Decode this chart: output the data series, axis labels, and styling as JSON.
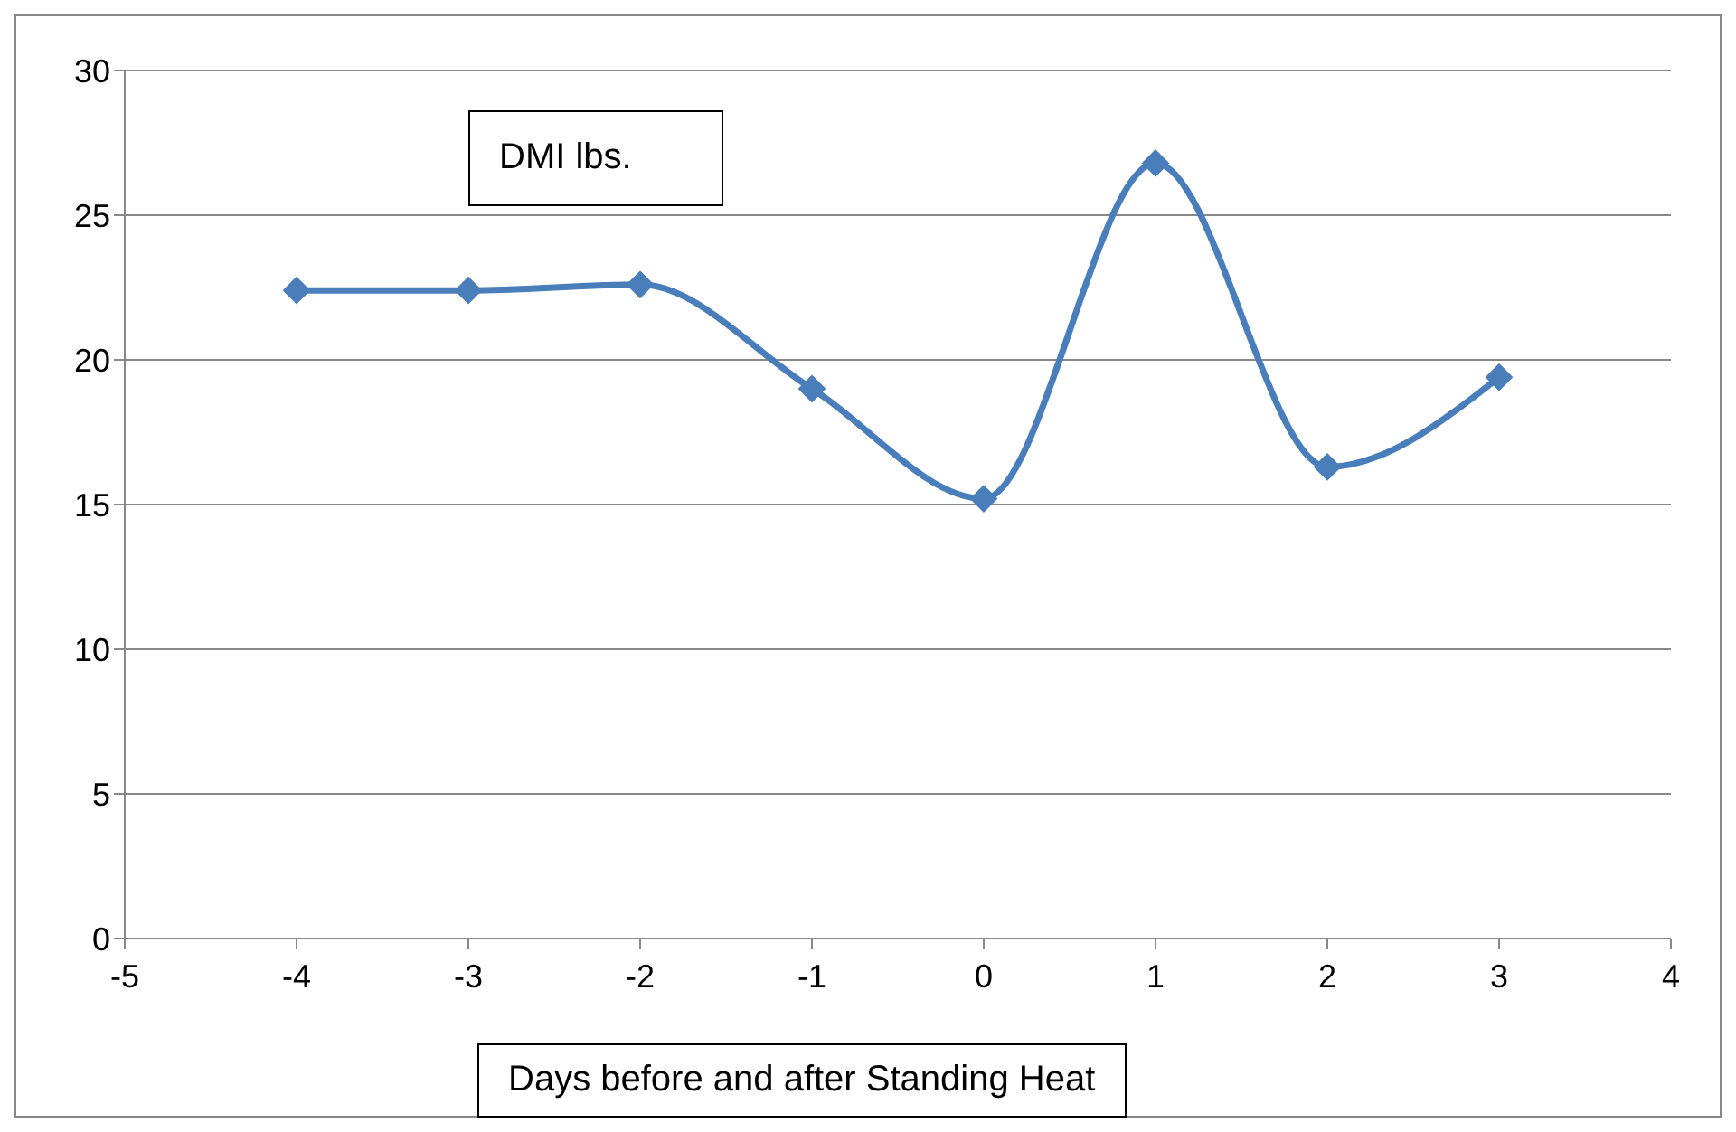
{
  "chart_data": {
    "type": "line",
    "title": "DMI lbs.",
    "xlabel": "Days before and after Standing Heat",
    "x": [
      -4,
      -3,
      -2,
      -1,
      0,
      1,
      2,
      3
    ],
    "series": [
      {
        "color": "#4a7ebb",
        "values": [
          22.4,
          22.4,
          22.6,
          19.0,
          15.2,
          26.8,
          16.3,
          19.4
        ]
      }
    ],
    "xlim": [
      -5,
      4
    ],
    "xticks": [
      -5,
      -4,
      -3,
      -2,
      -1,
      0,
      1,
      2,
      3,
      4
    ],
    "ylim": [
      0,
      30
    ],
    "yticks": [
      0,
      5,
      10,
      15,
      20,
      25,
      30
    ],
    "grid": "y",
    "marker": "diamond",
    "line_style": "solid"
  }
}
